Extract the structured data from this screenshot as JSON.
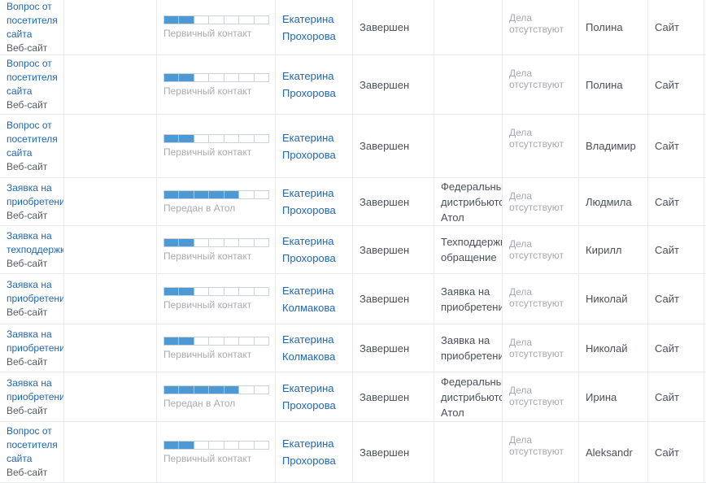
{
  "colors": {
    "link_blue": "#2067b3",
    "bar_fill_blue": "#4d99d6",
    "muted_gray": "#a4a8ae",
    "text_dark": "#4a5057",
    "border_gray": "#e9eaec"
  },
  "rows": [
    {
      "title": "Вопрос от посетителя сайта",
      "subtitle": "Веб-сайт",
      "stage": {
        "label": "Первичный контакт",
        "filled": 2,
        "total": 7
      },
      "assignee": "Екатерина Прохорова",
      "status": "Завершен",
      "type": "",
      "activities": "Дела отсутствуют",
      "contact": "Полина",
      "source": "Сайт"
    },
    {
      "title": "Вопрос от посетителя сайта",
      "subtitle": "Веб-сайт",
      "stage": {
        "label": "Первичный контакт",
        "filled": 2,
        "total": 7
      },
      "assignee": "Екатерина Прохорова",
      "status": "Завершен",
      "type": "",
      "activities": "Дела отсутствуют",
      "contact": "Полина",
      "source": "Сайт"
    },
    {
      "title": "Вопрос от посетителя сайта",
      "subtitle": "Веб-сайт",
      "stage": {
        "label": "Первичный контакт",
        "filled": 2,
        "total": 7
      },
      "assignee": "Екатерина Прохорова",
      "status": "Завершен",
      "type": "",
      "activities": "Дела отсутствуют",
      "contact": "Владимир",
      "source": "Сайт"
    },
    {
      "title": "Заявка на приобретение",
      "subtitle": "Веб-сайт",
      "stage": {
        "label": "Передан в Атол",
        "filled": 5,
        "total": 7
      },
      "assignee": "Екатерина Прохорова",
      "status": "Завершен",
      "type": "Федеральный дистрибьютор Атол",
      "activities": "Дела отсутствуют",
      "contact": "Людмила",
      "source": "Сайт"
    },
    {
      "title": "Заявка на техподдержку",
      "subtitle": "Веб-сайт",
      "stage": {
        "label": "Первичный контакт",
        "filled": 2,
        "total": 7
      },
      "assignee": "Екатерина Прохорова",
      "status": "Завершен",
      "type": "Техподдержка-обращение",
      "activities": "Дела отсутствуют",
      "contact": "Кирилл",
      "source": "Сайт"
    },
    {
      "title": "Заявка на приобретение",
      "subtitle": "Веб-сайт",
      "stage": {
        "label": "Первичный контакт",
        "filled": 2,
        "total": 7
      },
      "assignee": "Екатерина Колмакова",
      "status": "Завершен",
      "type": "Заявка на приобретение",
      "activities": "Дела отсутствуют",
      "contact": "Николай",
      "source": "Сайт"
    },
    {
      "title": "Заявка на приобретение",
      "subtitle": "Веб-сайт",
      "stage": {
        "label": "Первичный контакт",
        "filled": 2,
        "total": 7
      },
      "assignee": "Екатерина Колмакова",
      "status": "Завершен",
      "type": "Заявка на приобретение",
      "activities": "Дела отсутствуют",
      "contact": "Николай",
      "source": "Сайт"
    },
    {
      "title": "Заявка на приобретение",
      "subtitle": "Веб-сайт",
      "stage": {
        "label": "Передан в Атол",
        "filled": 5,
        "total": 7
      },
      "assignee": "Екатерина Прохорова",
      "status": "Завершен",
      "type": "Федеральный дистрибьютор Атол",
      "activities": "Дела отсутствуют",
      "contact": "Ирина",
      "source": "Сайт"
    },
    {
      "title": "Вопрос от посетителя сайта",
      "subtitle": "Веб-сайт",
      "stage": {
        "label": "Первичный контакт",
        "filled": 2,
        "total": 7
      },
      "assignee": "Екатерина Прохорова",
      "status": "Завершен",
      "type": "",
      "activities": "Дела отсутствуют",
      "contact": "Aleksandr",
      "source": "Сайт"
    }
  ]
}
